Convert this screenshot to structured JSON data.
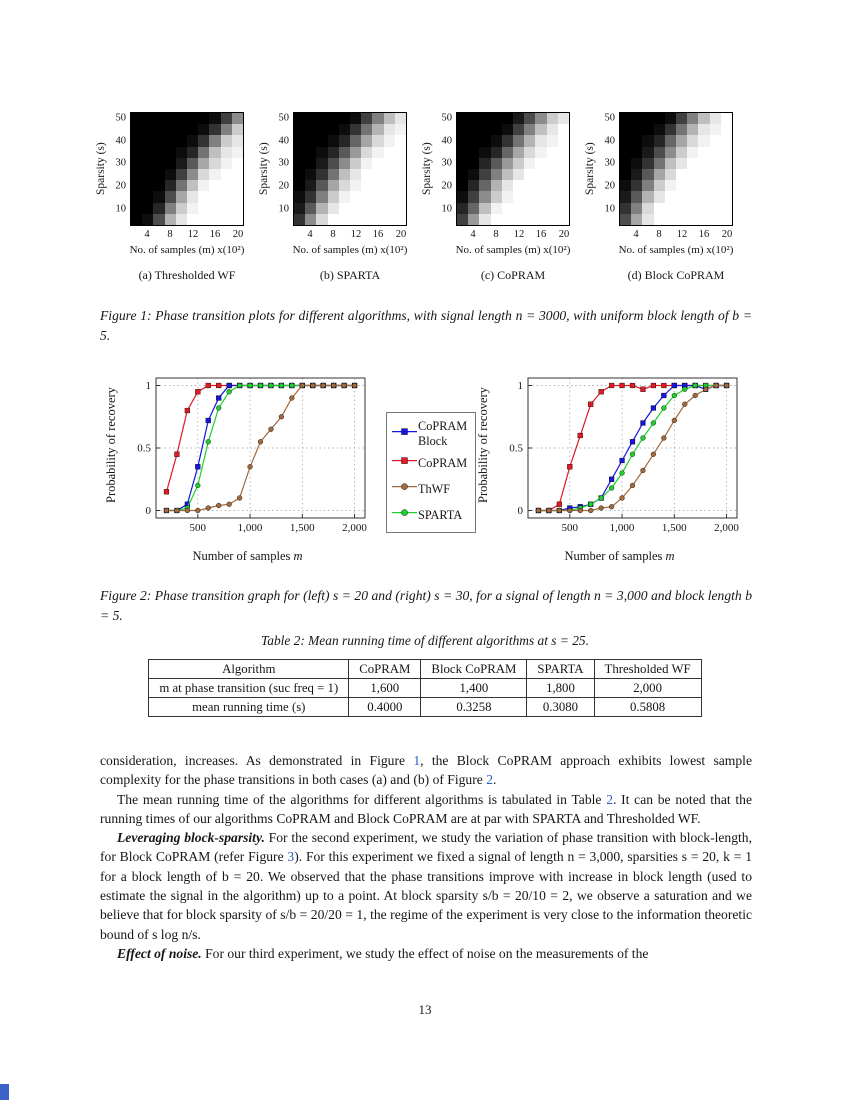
{
  "page": {
    "number": "13"
  },
  "figure1": {
    "ylabel": "Sparsity (s)",
    "xlabel": "No. of samples (m) x(10²)",
    "yticks": [
      "50",
      "40",
      "30",
      "20",
      "10"
    ],
    "xticks": [
      "4",
      "8",
      "12",
      "16",
      "20"
    ],
    "caption": "Figure 1: Phase transition plots for different algorithms, with signal length n = 3000, with uniform block length of b = 5.",
    "panels": [
      {
        "caption": "(a) Thresholded WF",
        "matrix": [
          [
            0,
            0,
            0,
            0,
            0,
            0,
            0,
            0.05,
            0.25,
            0.55
          ],
          [
            0,
            0,
            0,
            0,
            0,
            0,
            0.05,
            0.2,
            0.5,
            0.8
          ],
          [
            0,
            0,
            0,
            0,
            0,
            0.05,
            0.2,
            0.5,
            0.8,
            0.9
          ],
          [
            0,
            0,
            0,
            0,
            0.05,
            0.15,
            0.45,
            0.75,
            0.9,
            0.95
          ],
          [
            0,
            0,
            0,
            0,
            0.1,
            0.35,
            0.65,
            0.85,
            0.95,
            1
          ],
          [
            0,
            0,
            0,
            0.05,
            0.25,
            0.55,
            0.85,
            0.95,
            1,
            1
          ],
          [
            0,
            0,
            0,
            0.15,
            0.45,
            0.75,
            0.95,
            1,
            1,
            1
          ],
          [
            0,
            0,
            0.05,
            0.3,
            0.65,
            0.9,
            1,
            1,
            1,
            1
          ],
          [
            0,
            0,
            0.15,
            0.5,
            0.8,
            0.95,
            1,
            1,
            1,
            1
          ],
          [
            0,
            0.05,
            0.3,
            0.7,
            0.9,
            1,
            1,
            1,
            1,
            1
          ]
        ]
      },
      {
        "caption": "(b) SPARTA",
        "matrix": [
          [
            0,
            0,
            0,
            0,
            0,
            0.05,
            0.25,
            0.5,
            0.75,
            0.9
          ],
          [
            0,
            0,
            0,
            0,
            0.05,
            0.2,
            0.45,
            0.7,
            0.9,
            0.95
          ],
          [
            0,
            0,
            0,
            0.05,
            0.15,
            0.4,
            0.65,
            0.85,
            0.95,
            1
          ],
          [
            0,
            0,
            0.05,
            0.15,
            0.35,
            0.6,
            0.85,
            0.95,
            1,
            1
          ],
          [
            0,
            0,
            0.1,
            0.3,
            0.55,
            0.8,
            0.95,
            1,
            1,
            1
          ],
          [
            0,
            0.05,
            0.2,
            0.45,
            0.75,
            0.9,
            1,
            1,
            1,
            1
          ],
          [
            0,
            0.1,
            0.35,
            0.65,
            0.85,
            0.95,
            1,
            1,
            1,
            1
          ],
          [
            0.05,
            0.2,
            0.5,
            0.8,
            0.95,
            1,
            1,
            1,
            1,
            1
          ],
          [
            0.1,
            0.35,
            0.7,
            0.9,
            1,
            1,
            1,
            1,
            1,
            1
          ],
          [
            0.2,
            0.55,
            0.85,
            1,
            1,
            1,
            1,
            1,
            1,
            1
          ]
        ]
      },
      {
        "caption": "(c) CoPRAM",
        "matrix": [
          [
            0,
            0,
            0,
            0,
            0,
            0.1,
            0.3,
            0.55,
            0.8,
            0.9
          ],
          [
            0,
            0,
            0,
            0,
            0.05,
            0.25,
            0.5,
            0.75,
            0.9,
            1
          ],
          [
            0,
            0,
            0,
            0.05,
            0.2,
            0.45,
            0.7,
            0.9,
            0.95,
            1
          ],
          [
            0,
            0,
            0.05,
            0.15,
            0.4,
            0.65,
            0.85,
            0.95,
            1,
            1
          ],
          [
            0,
            0,
            0.15,
            0.35,
            0.6,
            0.8,
            0.95,
            1,
            1,
            1
          ],
          [
            0,
            0.05,
            0.25,
            0.5,
            0.75,
            0.9,
            1,
            1,
            1,
            1
          ],
          [
            0,
            0.15,
            0.4,
            0.7,
            0.9,
            1,
            1,
            1,
            1,
            1
          ],
          [
            0.05,
            0.25,
            0.55,
            0.8,
            0.95,
            1,
            1,
            1,
            1,
            1
          ],
          [
            0.15,
            0.4,
            0.75,
            0.95,
            1,
            1,
            1,
            1,
            1,
            1
          ],
          [
            0.25,
            0.6,
            0.9,
            1,
            1,
            1,
            1,
            1,
            1,
            1
          ]
        ]
      },
      {
        "caption": "(d) Block CoPRAM",
        "matrix": [
          [
            0,
            0,
            0,
            0,
            0.05,
            0.25,
            0.5,
            0.75,
            0.9,
            1
          ],
          [
            0,
            0,
            0,
            0.05,
            0.2,
            0.45,
            0.7,
            0.9,
            0.95,
            1
          ],
          [
            0,
            0,
            0.05,
            0.15,
            0.4,
            0.65,
            0.85,
            0.95,
            1,
            1
          ],
          [
            0,
            0,
            0.1,
            0.3,
            0.55,
            0.8,
            0.95,
            1,
            1,
            1
          ],
          [
            0,
            0.05,
            0.2,
            0.45,
            0.75,
            0.9,
            1,
            1,
            1,
            1
          ],
          [
            0,
            0.1,
            0.35,
            0.65,
            0.85,
            1,
            1,
            1,
            1,
            1
          ],
          [
            0.05,
            0.2,
            0.5,
            0.8,
            0.95,
            1,
            1,
            1,
            1,
            1
          ],
          [
            0.1,
            0.35,
            0.7,
            0.9,
            1,
            1,
            1,
            1,
            1,
            1
          ],
          [
            0.2,
            0.5,
            0.85,
            1,
            1,
            1,
            1,
            1,
            1,
            1
          ],
          [
            0.3,
            0.65,
            0.9,
            1,
            1,
            1,
            1,
            1,
            1,
            1
          ]
        ]
      }
    ]
  },
  "figure2": {
    "type": "line",
    "ylabel": "Probability of recovery",
    "xlabel_text": "Number of samples ",
    "xlabel_var": "m",
    "ytick_labels": [
      "0",
      "0.5",
      "1"
    ],
    "ytick_values": [
      0,
      0.5,
      1
    ],
    "xtick_labels": [
      "500",
      "1,000",
      "1,500",
      "2,000"
    ],
    "xtick_values": [
      500,
      1000,
      1500,
      2000
    ],
    "xrange": [
      100,
      2100
    ],
    "yrange": [
      -0.06,
      1.06
    ],
    "legend": [
      {
        "label": "CoPRAM\nBlock",
        "color": "#1616e0",
        "marker": "square"
      },
      {
        "label": "CoPRAM",
        "color": "#e11b23",
        "marker": "square"
      },
      {
        "label": "ThWF",
        "color": "#a26a3f",
        "marker": "circle"
      },
      {
        "label": "SPARTA",
        "color": "#1fcf2e",
        "marker": "circle"
      }
    ],
    "x": [
      200,
      300,
      400,
      500,
      600,
      700,
      800,
      900,
      1000,
      1100,
      1200,
      1300,
      1400,
      1500,
      1600,
      1700,
      1800,
      1900,
      2000
    ],
    "plots": [
      {
        "s": 20,
        "series": [
          {
            "legend": 1,
            "y": [
              0.15,
              0.45,
              0.8,
              0.95,
              1,
              1,
              1,
              1,
              1,
              1,
              1,
              1,
              1,
              1,
              1,
              1,
              1,
              1,
              1
            ]
          },
          {
            "legend": 0,
            "y": [
              0,
              0,
              0.05,
              0.35,
              0.72,
              0.9,
              1,
              1,
              1,
              1,
              1,
              1,
              1,
              1,
              1,
              1,
              1,
              1,
              1
            ]
          },
          {
            "legend": 3,
            "y": [
              0,
              0,
              0.02,
              0.2,
              0.55,
              0.82,
              0.95,
              1,
              1,
              1,
              1,
              1,
              1,
              1,
              1,
              1,
              1,
              1,
              1
            ]
          },
          {
            "legend": 2,
            "y": [
              0,
              0,
              0,
              0,
              0.02,
              0.04,
              0.05,
              0.1,
              0.35,
              0.55,
              0.65,
              0.75,
              0.9,
              1,
              1,
              1,
              1,
              1,
              1
            ]
          }
        ]
      },
      {
        "s": 30,
        "series": [
          {
            "legend": 1,
            "y": [
              0,
              0,
              0.05,
              0.35,
              0.6,
              0.85,
              0.95,
              1,
              1,
              1,
              0.97,
              1,
              1,
              1,
              1,
              1,
              1,
              1,
              1
            ]
          },
          {
            "legend": 0,
            "y": [
              0,
              0,
              0,
              0.02,
              0.03,
              0.05,
              0.1,
              0.25,
              0.4,
              0.55,
              0.7,
              0.82,
              0.92,
              1,
              1,
              1,
              0.97,
              1,
              1
            ]
          },
          {
            "legend": 3,
            "y": [
              0,
              0,
              0,
              0,
              0.02,
              0.05,
              0.1,
              0.18,
              0.3,
              0.45,
              0.58,
              0.7,
              0.82,
              0.92,
              0.97,
              1,
              1,
              1,
              1
            ]
          },
          {
            "legend": 2,
            "y": [
              0,
              0,
              0,
              0,
              0,
              0,
              0.02,
              0.03,
              0.1,
              0.2,
              0.32,
              0.45,
              0.58,
              0.72,
              0.85,
              0.92,
              0.97,
              1,
              1
            ]
          }
        ]
      }
    ],
    "caption": "Figure 2: Phase transition graph for (left) s = 20 and (right) s = 30, for a signal of length n = 3,000 and block length b = 5."
  },
  "table2": {
    "title": "Table 2: Mean running time of different algorithms at s = 25.",
    "columns": [
      "Algorithm",
      "CoPRAM",
      "Block CoPRAM",
      "SPARTA",
      "Thresholded WF"
    ],
    "rows": [
      {
        "cells": [
          "m at phase transition (suc freq = 1)",
          "1,600",
          "1,400",
          "1,800",
          "2,000"
        ]
      },
      {
        "cells": [
          "mean running time (s)",
          "0.4000",
          "0.3258",
          "0.3080",
          "0.5808"
        ]
      }
    ]
  },
  "body": {
    "paragraphs": [
      {
        "indent": false,
        "segments": [
          {
            "t": "consideration, increases. As demonstrated in Figure ",
            "s": "plain"
          },
          {
            "t": "1",
            "s": "link"
          },
          {
            "t": ", the Block CoPRAM approach exhibits lowest sample complexity for the phase transitions in both cases (a) and (b) of Figure ",
            "s": "plain"
          },
          {
            "t": "2",
            "s": "link"
          },
          {
            "t": ".",
            "s": "plain"
          }
        ]
      },
      {
        "indent": true,
        "segments": [
          {
            "t": "The mean running time of the algorithms for different algorithms is tabulated in Table ",
            "s": "plain"
          },
          {
            "t": "2",
            "s": "link"
          },
          {
            "t": ". It can be noted that the running times of our algorithms CoPRAM and Block CoPRAM are at par with SPARTA and Thresholded WF.",
            "s": "plain"
          }
        ]
      },
      {
        "indent": true,
        "segments": [
          {
            "t": "Leveraging block-sparsity.",
            "s": "bolditalic"
          },
          {
            "t": " For the second experiment, we study the variation of phase transition with block-length, for Block CoPRAM (refer Figure ",
            "s": "plain"
          },
          {
            "t": "3",
            "s": "link"
          },
          {
            "t": "). For this experiment we fixed a signal of length n = 3,000, sparsities s = 20, k = 1 for a block length of b = 20. We observed that the phase transitions improve with increase in block length (used to estimate the signal in the algorithm) up to a point. At block sparsity s/b = 20/10 = 2, we observe a saturation and we believe that for block sparsity of s/b = 20/20 = 1, the regime of the experiment is very close to the information theoretic bound of s log n/s.",
            "s": "plain"
          }
        ]
      },
      {
        "indent": true,
        "segments": [
          {
            "t": "Effect of noise.",
            "s": "bolditalic"
          },
          {
            "t": " For our third experiment, we study the effect of noise on the measurements of the",
            "s": "plain"
          }
        ]
      }
    ]
  },
  "colors": {
    "link": "#2a5bc7"
  }
}
